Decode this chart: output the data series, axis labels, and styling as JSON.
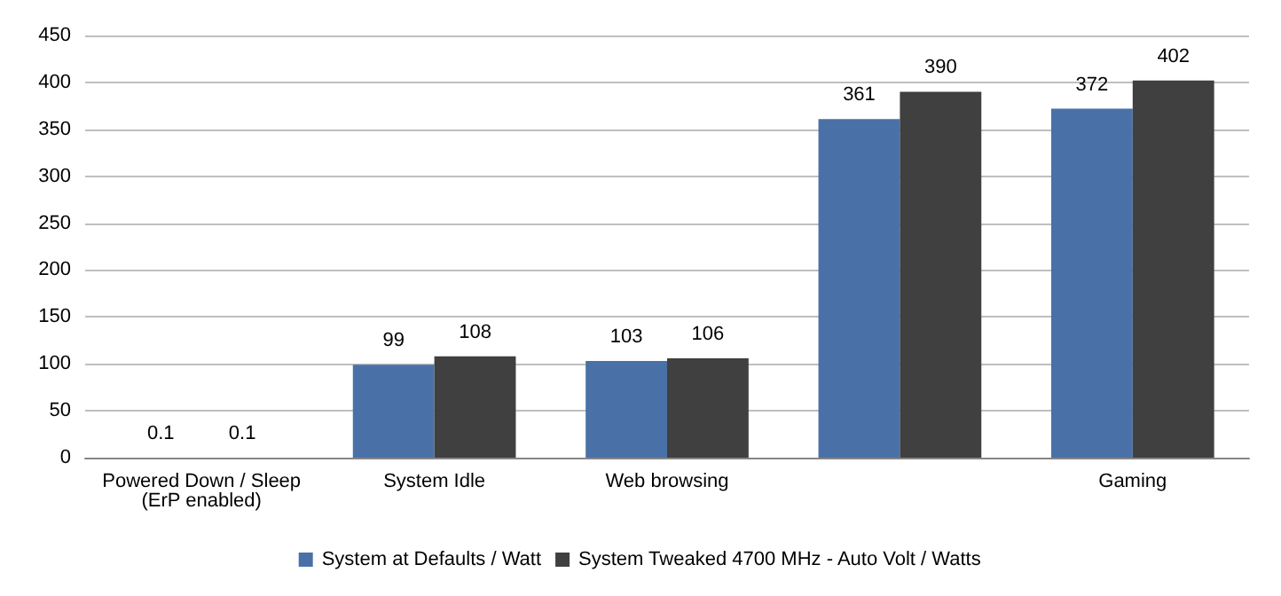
{
  "chart_data": {
    "type": "bar",
    "categories": [
      "Powered Down / Sleep\n(ErP enabled)",
      "System Idle",
      "Web browsing",
      null,
      "Gaming"
    ],
    "series": [
      {
        "name": "System at Defaults / Watt",
        "color": "#4a71a7",
        "values": [
          0.1,
          99,
          103,
          361,
          372
        ]
      },
      {
        "name": "System Tweaked 4700 MHz - Auto Volt / Watts",
        "color": "#404040",
        "values": [
          0.1,
          108,
          106,
          390,
          402
        ]
      }
    ],
    "ylim": [
      0,
      450
    ],
    "yticks": [
      0,
      50,
      100,
      150,
      200,
      250,
      300,
      350,
      400,
      450
    ],
    "grid": "y",
    "legend": "bottom",
    "data_labels": true
  }
}
